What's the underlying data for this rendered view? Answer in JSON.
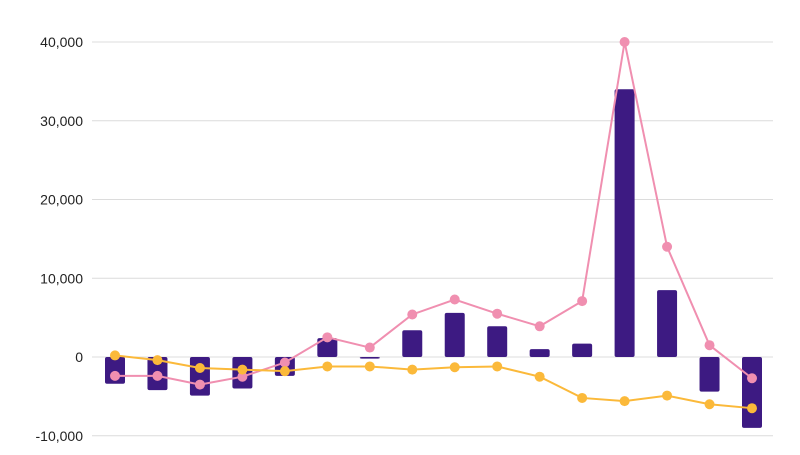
{
  "chart_data": {
    "type": "bar+line",
    "title": "",
    "xlabel": "",
    "ylabel": "",
    "ylim": [
      -10000,
      40000
    ],
    "yticks": [
      -10000,
      0,
      10000,
      20000,
      30000,
      40000
    ],
    "ytick_labels": [
      "-10,000",
      "0",
      "10,000",
      "20,000",
      "30,000",
      "40,000"
    ],
    "grid": "horizontal",
    "legend": "none",
    "categories_count": 16,
    "series": [
      {
        "type": "bar",
        "color": "#3d1a82",
        "values": [
          -3400,
          -4200,
          -4900,
          -4000,
          -2400,
          2400,
          -200,
          3400,
          5600,
          3900,
          1000,
          1700,
          34000,
          8500,
          -4400,
          -9000
        ]
      },
      {
        "type": "line",
        "color": "#f08fb0",
        "values": [
          -2400,
          -2400,
          -3500,
          -2500,
          -700,
          2500,
          1200,
          5400,
          7300,
          5500,
          3900,
          7100,
          40000,
          14000,
          1500,
          -2700
        ]
      },
      {
        "type": "line",
        "color": "#fbb93a",
        "values": [
          200,
          -400,
          -1400,
          -1600,
          -1800,
          -1200,
          -1200,
          -1600,
          -1300,
          -1200,
          -2500,
          -5200,
          -5600,
          -4900,
          -6000,
          -6500
        ]
      }
    ]
  }
}
